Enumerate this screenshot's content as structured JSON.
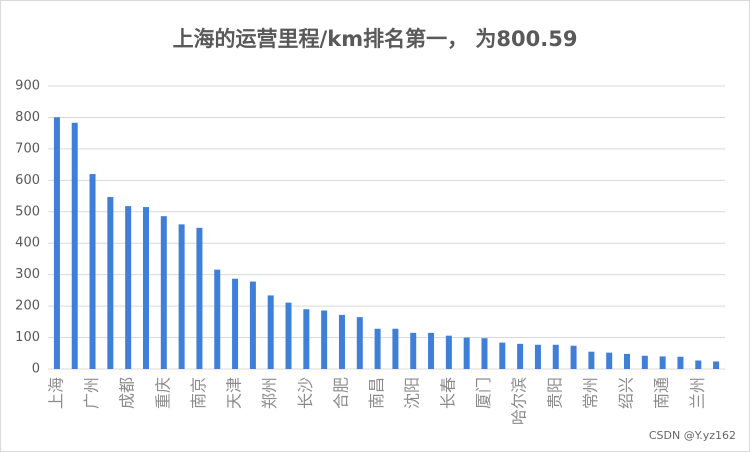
{
  "chart_data": {
    "type": "bar",
    "title": "上海的运营里程/km排名第一， 为800.59",
    "categories": [
      "上海",
      null,
      "广州",
      null,
      "成都",
      null,
      "重庆",
      null,
      "南京",
      null,
      "天津",
      null,
      "郑州",
      null,
      "长沙",
      null,
      "合肥",
      null,
      "南昌",
      null,
      "沈阳",
      null,
      "长春",
      null,
      "厦门",
      null,
      "哈尔滨",
      null,
      "贵阳",
      null,
      "常州",
      null,
      "绍兴",
      null,
      "南通",
      null,
      "兰州",
      null
    ],
    "values": [
      800.59,
      783,
      620,
      547,
      518,
      515,
      486,
      460,
      449,
      316,
      287,
      278,
      234,
      211,
      190,
      186,
      172,
      165,
      128,
      128,
      115,
      115,
      106,
      100,
      98,
      84,
      80,
      77,
      77,
      74,
      55,
      52,
      48,
      42,
      40,
      39,
      27,
      24
    ],
    "color": "#3f7fd8",
    "ylim": [
      0,
      900
    ],
    "yticks": [
      0,
      100,
      200,
      300,
      400,
      500,
      600,
      700,
      800,
      900
    ],
    "grid": true
  },
  "watermark": "CSDN @Y.yz162"
}
